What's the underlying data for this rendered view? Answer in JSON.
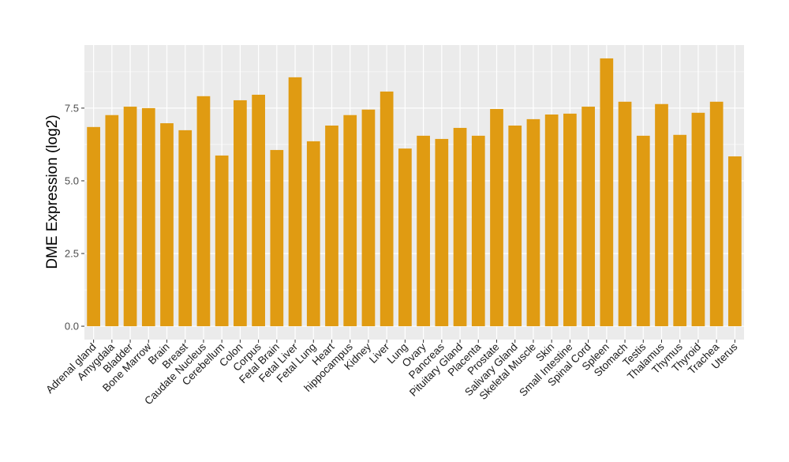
{
  "chart_data": {
    "type": "bar",
    "title": "",
    "xlabel": "",
    "ylabel": "DME Expression (log2)",
    "ylim": [
      -0.46,
      9.67
    ],
    "yticks": [
      0,
      2.5,
      5,
      7.5
    ],
    "ytick_labels": [
      "0.0",
      "2.5",
      "5.0",
      "7.5"
    ],
    "grid": true,
    "legend": "none",
    "bar_color": "#E09B12",
    "categories": [
      "Adrenal gland",
      "Amygdala",
      "Bladder",
      "Bone Marrow",
      "Brain",
      "Breast",
      "Caudate Nucleus",
      "Cerebellum",
      "Colon",
      "Corpus",
      "Fetal Brain",
      "Fetal Liver",
      "Fetal Lung",
      "Heart",
      "hippocampus",
      "Kidney",
      "Liver",
      "Lung",
      "Ovary",
      "Pancreas",
      "Pituitary Gland",
      "Placenta",
      "Prostate",
      "Salivary Gland",
      "Skeletal Muscle",
      "Skin",
      "Small Intestine",
      "Spinal Cord",
      "Spleen",
      "Stomach",
      "Testis",
      "Thalamus",
      "Thymus",
      "Thyroid",
      "Trachea",
      "Uterus"
    ],
    "values": [
      6.85,
      7.26,
      7.55,
      7.5,
      6.98,
      6.74,
      7.91,
      5.87,
      7.77,
      7.96,
      6.06,
      8.56,
      6.36,
      6.9,
      7.26,
      7.45,
      8.07,
      6.11,
      6.55,
      6.44,
      6.82,
      6.55,
      7.47,
      6.9,
      7.12,
      7.28,
      7.31,
      7.55,
      9.21,
      7.72,
      6.55,
      7.64,
      6.58,
      7.34,
      7.72,
      5.84
    ]
  }
}
